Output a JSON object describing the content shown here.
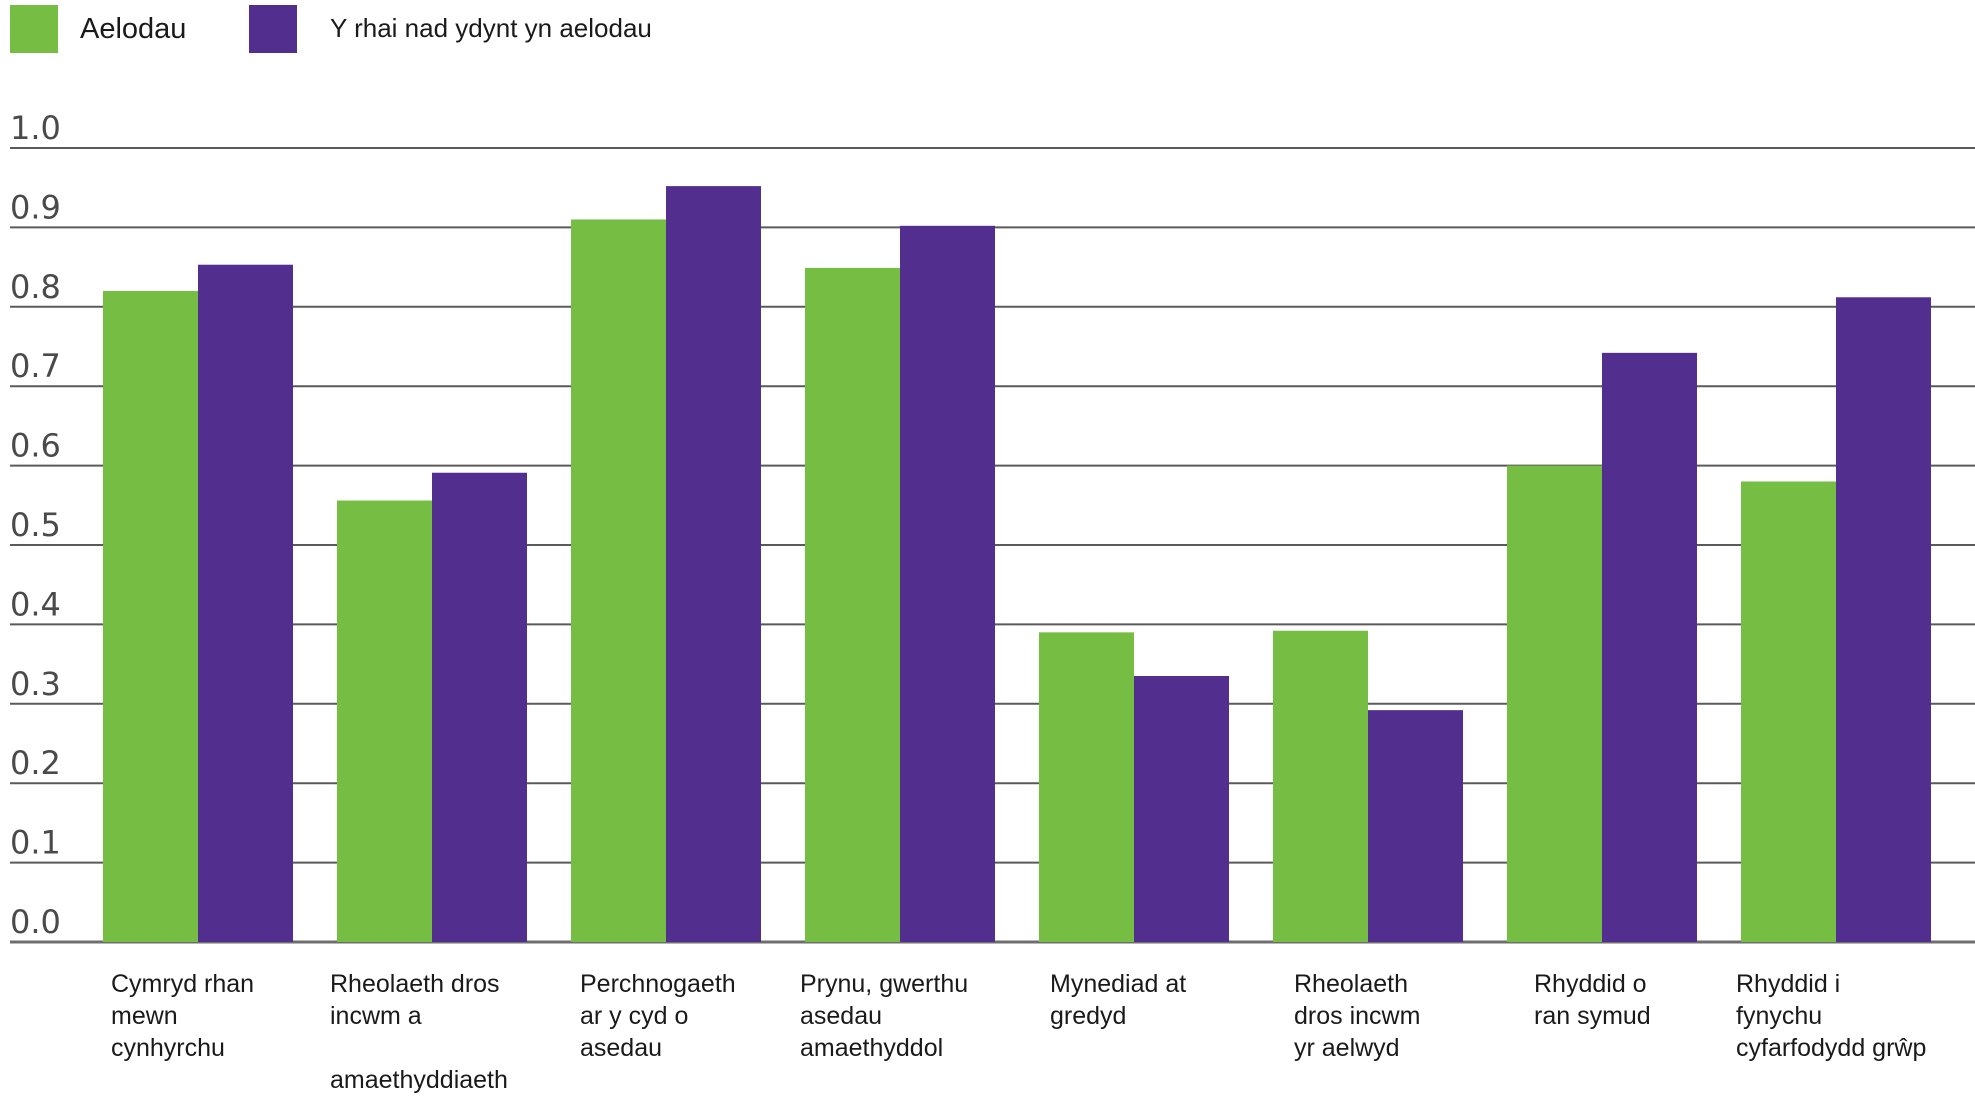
{
  "chart_data": {
    "type": "bar",
    "categories": [
      "Cymryd rhan\nmewn\ncynhyrchu",
      "Rheolaeth dros\nincwm a\n\namaethyddiaeth",
      "Perchnogaeth\nar y cyd o\nasedau",
      "Prynu, gwerthu\nasedau\namaethyddol",
      "Mynediad at\ngredyd",
      "Rheolaeth\ndros incwm\nyr aelwyd",
      "Rhyddid o\nran symud",
      "Rhyddid i\nfynychu\ncyfarfodydd grŵp"
    ],
    "series": [
      {
        "name": "Aelodau",
        "color": "#76bd43",
        "values": [
          0.82,
          0.556,
          0.91,
          0.849,
          0.39,
          0.392,
          0.6,
          0.58
        ]
      },
      {
        "name": "Y rhai nad ydynt yn aelodau",
        "color": "#522e8f",
        "values": [
          0.853,
          0.591,
          0.952,
          0.902,
          0.335,
          0.292,
          0.742,
          0.812
        ]
      }
    ],
    "y_ticks": [
      "0.0",
      "0.1",
      "0.2",
      "0.3",
      "0.4",
      "0.5",
      "0.6",
      "0.7",
      "0.8",
      "0.9",
      "1.0"
    ],
    "ylim": [
      0,
      1.0
    ],
    "grid": true,
    "legend_position": "top-left",
    "title": "",
    "xlabel": "",
    "ylabel": ""
  }
}
